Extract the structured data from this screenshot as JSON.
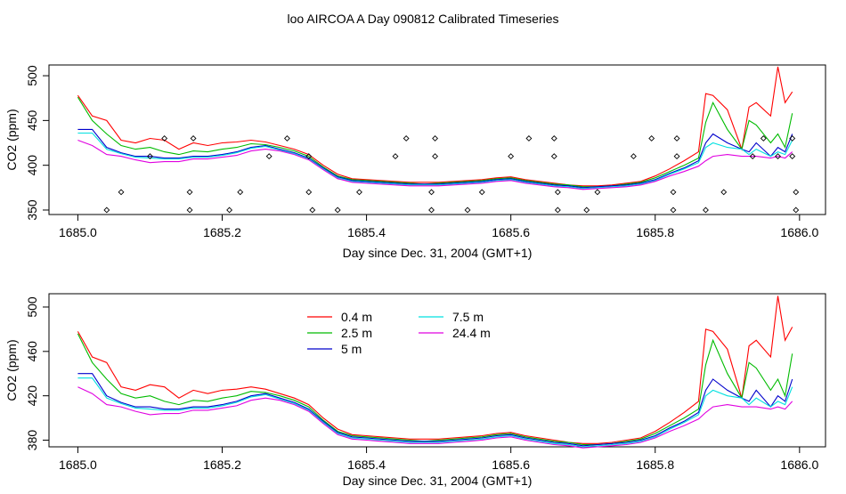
{
  "title": "loo AIRCOA A  Day 090812  Calibrated Timeseries",
  "colors": {
    "0.4 m": "#ff0000",
    "2.5 m": "#00bb00",
    "5 m": "#0000cc",
    "7.5 m": "#00e0e0",
    "24.4 m": "#e000e0",
    "markers": "#000000",
    "frame": "#000000"
  },
  "chart_data": [
    {
      "type": "line",
      "xlabel": "Day since Dec. 31, 2004 (GMT+1)",
      "ylabel": "CO2 (ppm)",
      "xlim": [
        1685.0,
        1686.0
      ],
      "ylim": [
        345,
        512
      ],
      "xticks": [
        "1685.0",
        "1685.2",
        "1685.4",
        "1685.6",
        "1685.8",
        "1686.0"
      ],
      "yticks": [
        "350",
        "400",
        "450",
        "500"
      ],
      "grid": false,
      "legend": "none",
      "x": [
        1685.0,
        1685.02,
        1685.04,
        1685.06,
        1685.08,
        1685.1,
        1685.12,
        1685.14,
        1685.16,
        1685.18,
        1685.2,
        1685.22,
        1685.24,
        1685.26,
        1685.28,
        1685.3,
        1685.32,
        1685.34,
        1685.36,
        1685.38,
        1685.4,
        1685.42,
        1685.44,
        1685.46,
        1685.48,
        1685.5,
        1685.52,
        1685.54,
        1685.56,
        1685.58,
        1685.6,
        1685.62,
        1685.64,
        1685.66,
        1685.68,
        1685.7,
        1685.72,
        1685.74,
        1685.76,
        1685.78,
        1685.8,
        1685.82,
        1685.84,
        1685.86,
        1685.87,
        1685.88,
        1685.9,
        1685.92,
        1685.93,
        1685.94,
        1685.96,
        1685.97,
        1685.98,
        1685.99
      ],
      "series": [
        {
          "name": "0.4 m",
          "values": [
            478,
            455,
            450,
            428,
            425,
            430,
            428,
            418,
            425,
            422,
            425,
            426,
            428,
            426,
            422,
            418,
            412,
            400,
            390,
            385,
            384,
            383,
            382,
            381,
            381,
            381,
            382,
            383,
            384,
            386,
            387,
            384,
            382,
            380,
            378,
            377,
            377,
            378,
            380,
            382,
            388,
            396,
            405,
            415,
            480,
            478,
            462,
            418,
            465,
            470,
            455,
            510,
            470,
            482
          ]
        },
        {
          "name": "2.5 m",
          "values": [
            476,
            450,
            435,
            422,
            418,
            420,
            415,
            412,
            416,
            415,
            418,
            420,
            424,
            423,
            420,
            416,
            410,
            398,
            388,
            384,
            383,
            382,
            381,
            380,
            379,
            380,
            381,
            382,
            383,
            385,
            386,
            383,
            381,
            379,
            378,
            376,
            376,
            377,
            379,
            381,
            386,
            393,
            400,
            408,
            448,
            470,
            440,
            418,
            450,
            445,
            425,
            435,
            420,
            458
          ]
        },
        {
          "name": "5 m",
          "values": [
            440,
            440,
            420,
            414,
            410,
            410,
            408,
            408,
            410,
            410,
            412,
            415,
            420,
            422,
            418,
            414,
            408,
            397,
            387,
            383,
            382,
            381,
            380,
            379,
            379,
            379,
            380,
            381,
            382,
            384,
            385,
            382,
            380,
            378,
            377,
            375,
            376,
            377,
            378,
            380,
            384,
            391,
            397,
            405,
            425,
            435,
            425,
            418,
            415,
            425,
            410,
            420,
            415,
            435
          ]
        },
        {
          "name": "7.5 m",
          "values": [
            436,
            436,
            418,
            413,
            409,
            408,
            407,
            407,
            409,
            409,
            411,
            414,
            419,
            421,
            417,
            413,
            407,
            396,
            386,
            382,
            381,
            380,
            379,
            378,
            378,
            378,
            379,
            380,
            381,
            383,
            384,
            381,
            379,
            377,
            376,
            374,
            375,
            376,
            377,
            379,
            383,
            390,
            396,
            403,
            420,
            425,
            420,
            418,
            412,
            418,
            410,
            415,
            412,
            428
          ]
        },
        {
          "name": "24.4 m",
          "values": [
            428,
            422,
            412,
            410,
            406,
            403,
            404,
            404,
            407,
            407,
            409,
            411,
            416,
            418,
            416,
            412,
            406,
            395,
            385,
            381,
            380,
            379,
            378,
            377,
            377,
            377,
            378,
            379,
            380,
            382,
            383,
            380,
            378,
            376,
            375,
            373,
            374,
            375,
            376,
            378,
            382,
            388,
            393,
            399,
            405,
            410,
            412,
            410,
            410,
            410,
            408,
            410,
            408,
            415
          ]
        }
      ],
      "markers": {
        "x": [
          1685.04,
          1685.06,
          1685.1,
          1685.12,
          1685.155,
          1685.155,
          1685.16,
          1685.21,
          1685.225,
          1685.265,
          1685.29,
          1685.32,
          1685.32,
          1685.325,
          1685.36,
          1685.39,
          1685.44,
          1685.455,
          1685.49,
          1685.49,
          1685.495,
          1685.495,
          1685.54,
          1685.56,
          1685.6,
          1685.625,
          1685.66,
          1685.66,
          1685.665,
          1685.665,
          1685.705,
          1685.72,
          1685.77,
          1685.795,
          1685.825,
          1685.825,
          1685.83,
          1685.83,
          1685.87,
          1685.895,
          1685.935,
          1685.95,
          1685.97,
          1685.99,
          1685.99,
          1685.995,
          1685.995
        ],
        "y": [
          350,
          370,
          410,
          430,
          350,
          370,
          430,
          350,
          370,
          410,
          430,
          370,
          410,
          350,
          350,
          370,
          410,
          430,
          350,
          370,
          410,
          430,
          350,
          370,
          410,
          430,
          410,
          430,
          350,
          370,
          350,
          370,
          410,
          430,
          350,
          370,
          410,
          430,
          350,
          370,
          410,
          430,
          410,
          410,
          430,
          350,
          370
        ]
      }
    },
    {
      "type": "line",
      "xlabel": "Day since Dec. 31, 2004 (GMT+1)",
      "ylabel": "CO2 (ppm)",
      "xlim": [
        1685.0,
        1686.0
      ],
      "ylim": [
        374,
        512
      ],
      "xticks": [
        "1685.0",
        "1685.2",
        "1685.4",
        "1685.6",
        "1685.8",
        "1686.0"
      ],
      "yticks": [
        "380",
        "420",
        "460",
        "500"
      ],
      "grid": false,
      "legend": "top-left",
      "legend_entries": [
        "0.4 m",
        "2.5 m",
        "5 m",
        "7.5 m",
        "24.4 m"
      ],
      "x": [
        1685.0,
        1685.02,
        1685.04,
        1685.06,
        1685.08,
        1685.1,
        1685.12,
        1685.14,
        1685.16,
        1685.18,
        1685.2,
        1685.22,
        1685.24,
        1685.26,
        1685.28,
        1685.3,
        1685.32,
        1685.34,
        1685.36,
        1685.38,
        1685.4,
        1685.42,
        1685.44,
        1685.46,
        1685.48,
        1685.5,
        1685.52,
        1685.54,
        1685.56,
        1685.58,
        1685.6,
        1685.62,
        1685.64,
        1685.66,
        1685.68,
        1685.7,
        1685.72,
        1685.74,
        1685.76,
        1685.78,
        1685.8,
        1685.82,
        1685.84,
        1685.86,
        1685.87,
        1685.88,
        1685.9,
        1685.92,
        1685.93,
        1685.94,
        1685.96,
        1685.97,
        1685.98,
        1685.99
      ],
      "series": [
        {
          "name": "0.4 m",
          "values": [
            478,
            455,
            450,
            428,
            425,
            430,
            428,
            418,
            425,
            422,
            425,
            426,
            428,
            426,
            422,
            418,
            412,
            400,
            390,
            385,
            384,
            383,
            382,
            381,
            381,
            381,
            382,
            383,
            384,
            386,
            387,
            384,
            382,
            380,
            378,
            377,
            377,
            378,
            380,
            382,
            388,
            396,
            405,
            415,
            480,
            478,
            462,
            418,
            465,
            470,
            455,
            510,
            470,
            482
          ]
        },
        {
          "name": "2.5 m",
          "values": [
            476,
            450,
            435,
            422,
            418,
            420,
            415,
            412,
            416,
            415,
            418,
            420,
            424,
            423,
            420,
            416,
            410,
            398,
            388,
            384,
            383,
            382,
            381,
            380,
            379,
            380,
            381,
            382,
            383,
            385,
            386,
            383,
            381,
            379,
            378,
            376,
            376,
            377,
            379,
            381,
            386,
            393,
            400,
            408,
            448,
            470,
            440,
            418,
            450,
            445,
            425,
            435,
            420,
            458
          ]
        },
        {
          "name": "5 m",
          "values": [
            440,
            440,
            420,
            414,
            410,
            410,
            408,
            408,
            410,
            410,
            412,
            415,
            420,
            422,
            418,
            414,
            408,
            397,
            387,
            383,
            382,
            381,
            380,
            379,
            379,
            379,
            380,
            381,
            382,
            384,
            385,
            382,
            380,
            378,
            377,
            375,
            376,
            377,
            378,
            380,
            384,
            391,
            397,
            405,
            425,
            435,
            425,
            418,
            415,
            425,
            410,
            420,
            415,
            435
          ]
        },
        {
          "name": "7.5 m",
          "values": [
            436,
            436,
            418,
            413,
            409,
            408,
            407,
            407,
            409,
            409,
            411,
            414,
            419,
            421,
            417,
            413,
            407,
            396,
            386,
            382,
            381,
            380,
            379,
            378,
            378,
            378,
            379,
            380,
            381,
            383,
            384,
            381,
            379,
            377,
            376,
            374,
            375,
            376,
            377,
            379,
            383,
            390,
            396,
            403,
            420,
            425,
            420,
            418,
            412,
            418,
            410,
            415,
            412,
            428
          ]
        },
        {
          "name": "24.4 m",
          "values": [
            428,
            422,
            412,
            410,
            406,
            403,
            404,
            404,
            407,
            407,
            409,
            411,
            416,
            418,
            416,
            412,
            406,
            395,
            385,
            381,
            380,
            379,
            378,
            377,
            377,
            377,
            378,
            379,
            380,
            382,
            383,
            380,
            378,
            376,
            375,
            373,
            374,
            375,
            376,
            378,
            382,
            388,
            393,
            399,
            405,
            410,
            412,
            410,
            410,
            410,
            408,
            410,
            408,
            415
          ]
        }
      ]
    }
  ]
}
